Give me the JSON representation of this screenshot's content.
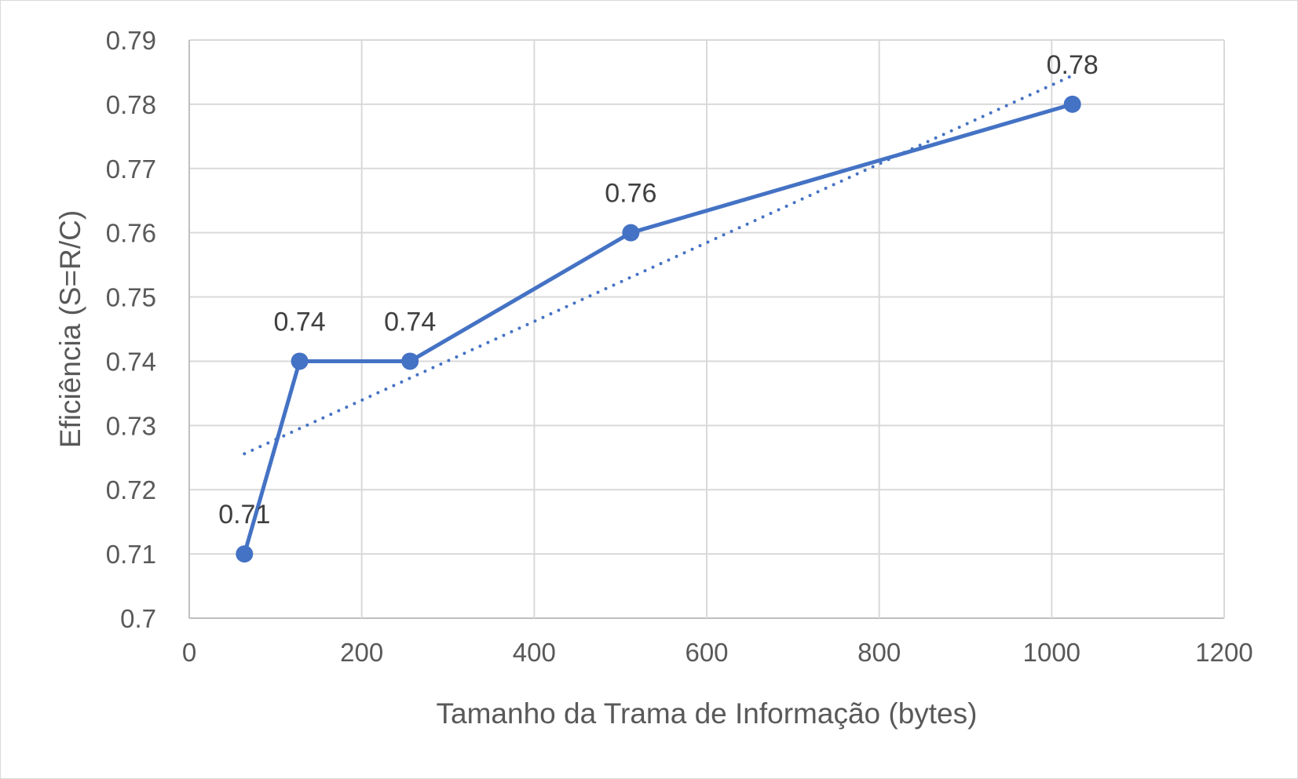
{
  "chart_data": {
    "type": "line",
    "xlabel": "Tamanho da Trama de Informação (bytes)",
    "ylabel": "Eficiência (S=R/C)",
    "xlim": [
      0,
      1200
    ],
    "ylim": [
      0.7,
      0.79
    ],
    "x_ticks": [
      "0",
      "200",
      "400",
      "600",
      "800",
      "1000",
      "1200"
    ],
    "y_ticks": [
      "0.7",
      "0.71",
      "0.72",
      "0.73",
      "0.74",
      "0.75",
      "0.76",
      "0.77",
      "0.78",
      "0.79"
    ],
    "grid": true,
    "legend": "none",
    "series": [
      {
        "x": [
          64,
          128,
          256,
          512,
          1024
        ],
        "y": [
          0.71,
          0.74,
          0.74,
          0.76,
          0.78
        ],
        "data_labels": [
          "0.71",
          "0.74",
          "0.74",
          "0.76",
          "0.78"
        ],
        "color": "#4472C4",
        "markers": true
      }
    ],
    "trendline": {
      "type": "linear",
      "style": "dotted",
      "color": "#4472C4",
      "x_range": [
        64,
        1024
      ]
    }
  }
}
